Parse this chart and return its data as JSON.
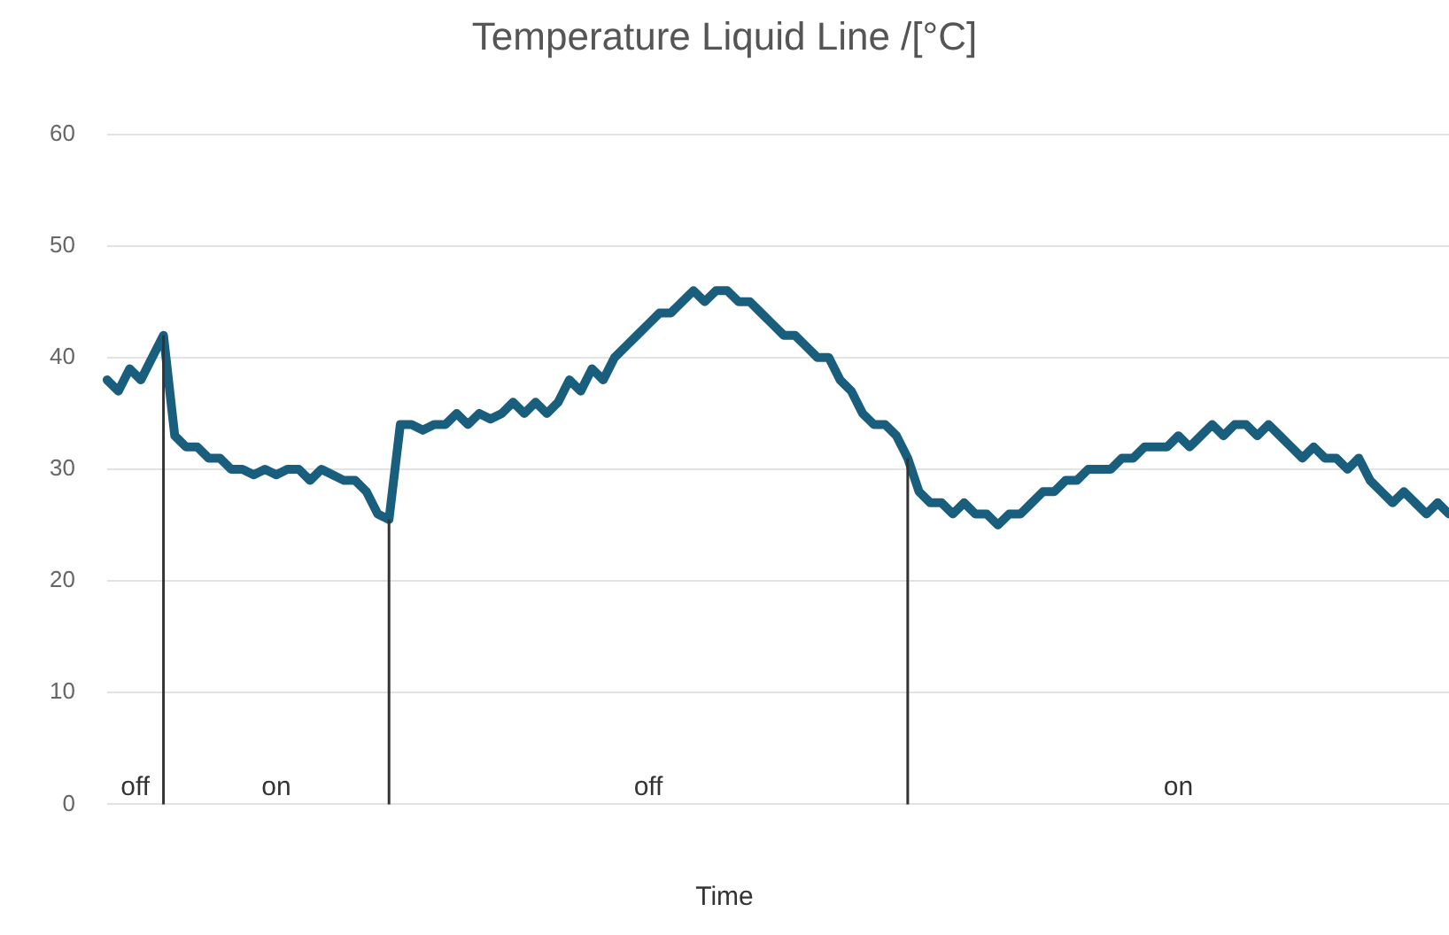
{
  "chart_data": {
    "type": "line",
    "title": "Temperature Liquid Line /[°C]",
    "xlabel": "Time",
    "categories": [
      null,
      null,
      null,
      null,
      null,
      null,
      null,
      null,
      null,
      null,
      null,
      null,
      null,
      null,
      null,
      null,
      null,
      null,
      null,
      null,
      null,
      null,
      null,
      null,
      null,
      null,
      null,
      null,
      null,
      null,
      null,
      null,
      null,
      null,
      null,
      null,
      null,
      null,
      null,
      null,
      null,
      null,
      null,
      null,
      null,
      null,
      null,
      null,
      null,
      null,
      null,
      null,
      null,
      null,
      null,
      null,
      null,
      null,
      null,
      null,
      null,
      null,
      null,
      null,
      null,
      null,
      null,
      null,
      null,
      null,
      null,
      null,
      null,
      null,
      null,
      null,
      null,
      null,
      null,
      null,
      null,
      null,
      null,
      null,
      null,
      null,
      null,
      null,
      null,
      null,
      null,
      null,
      null,
      null,
      null,
      null,
      null,
      null,
      null,
      null,
      null,
      null,
      null,
      null,
      null,
      null,
      null,
      null,
      null,
      null,
      null,
      null,
      null,
      null,
      null,
      null,
      null,
      null,
      null,
      null
    ],
    "series": [
      {
        "color": "#1a5e7e",
        "values": [
          38,
          37,
          39,
          38,
          40,
          42,
          33,
          32,
          32,
          31,
          31,
          30,
          30,
          29.5,
          30,
          29.5,
          30,
          30,
          29,
          30,
          29.5,
          29,
          29,
          28,
          26,
          25.5,
          34,
          34,
          33.5,
          34,
          34,
          35,
          34,
          35,
          34.5,
          35,
          36,
          35,
          36,
          35,
          36,
          38,
          37,
          39,
          38,
          40,
          41,
          42,
          43,
          44,
          44,
          45,
          46,
          45,
          46,
          46,
          45,
          45,
          44,
          43,
          42,
          42,
          41,
          40,
          40,
          38,
          37,
          35,
          34,
          34,
          33,
          31,
          28,
          27,
          27,
          26,
          27,
          26,
          26,
          25,
          26,
          26,
          27,
          28,
          28,
          29,
          29,
          30,
          30,
          30,
          31,
          31,
          32,
          32,
          32,
          33,
          32,
          33,
          34,
          33,
          34,
          34,
          33,
          34,
          33,
          32,
          31,
          32,
          31,
          31,
          30,
          31,
          29,
          28,
          27,
          28,
          27,
          26,
          27,
          26
        ]
      }
    ],
    "ylim": [
      0,
      60
    ],
    "yticks": [
      0,
      10,
      20,
      30,
      40,
      50,
      60
    ],
    "grid": "y",
    "tick_labels": "y",
    "legend": false,
    "marker": "none",
    "annotations": [
      "off",
      "on",
      "off",
      "on"
    ]
  }
}
